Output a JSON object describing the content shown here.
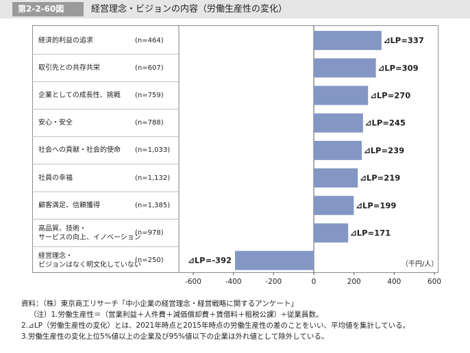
{
  "header": {
    "figure_no": "第2-2-60図",
    "title": "経営理念・ビジョンの内容（労働生産性の変化）"
  },
  "chart_data": {
    "type": "bar",
    "orientation": "horizontal",
    "categories": [
      "経済的利益の追求",
      "取引先との共存共栄",
      "企業としての成長性、挑戦",
      "安心・安全",
      "社会への貢献・社会的使命",
      "社員の幸福",
      "顧客満足、信頼獲得",
      "高品質、技術・\nサービスの向上、イノベーション",
      "経営理念・\nビジョンはなく明文化していない"
    ],
    "n_labels": [
      "(n=464)",
      "(n=607)",
      "(n=759)",
      "(n=788)",
      "(n=1,033)",
      "(n=1,132)",
      "(n=1,385)",
      "(n=978)",
      "(n=250)"
    ],
    "values": [
      337,
      309,
      270,
      245,
      239,
      219,
      199,
      171,
      -392
    ],
    "data_labels": [
      "⊿LP=337",
      "⊿LP=309",
      "⊿LP=270",
      "⊿LP=245",
      "⊿LP=239",
      "⊿LP=219",
      "⊿LP=199",
      "⊿LP=171",
      "⊿LP=-392"
    ],
    "xlim": [
      -600,
      600
    ],
    "xticks": [
      -600,
      -400,
      -200,
      0,
      200,
      400,
      600
    ],
    "unit_label": "（千円/人）",
    "bar_color": "#8497c4"
  },
  "notes": [
    "資料：（株）東京商工リサーチ「中小企業の経営理念・経営戦略に関するアンケート」",
    "（注）1.労働生産性＝（営業利益＋人件費＋減価償却費＋賃借料＋租税公課）÷従業員数。",
    "2.⊿LP（労働生産性の変化）とは、2021年時点と2015年時点の労働生産性の差のことをいい、平均値を集計している。",
    "3.労働生産性の変化上位5%値以上の企業及び95%値以下の企業は外れ値として除外している。"
  ]
}
